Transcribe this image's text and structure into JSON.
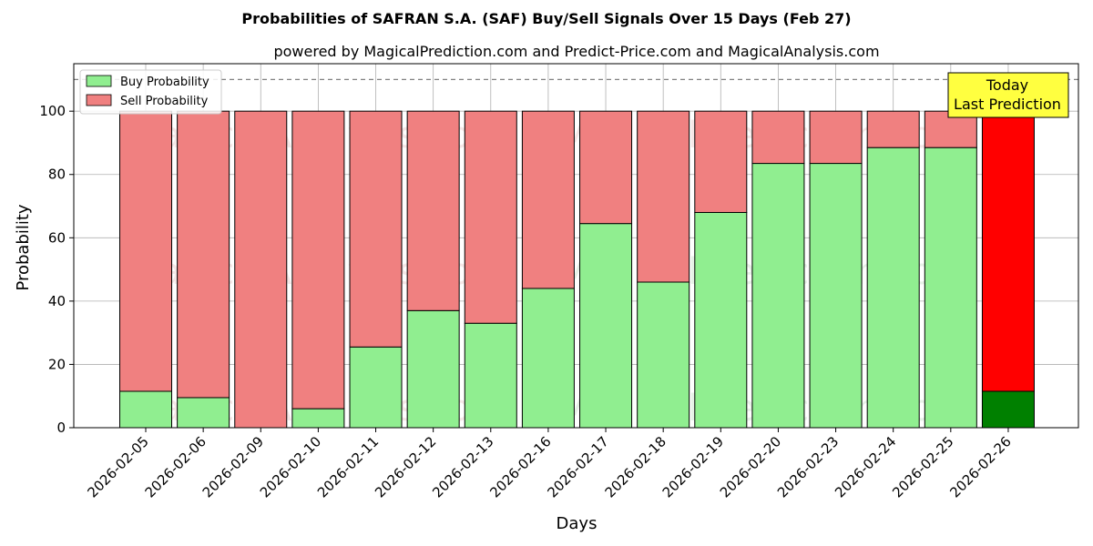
{
  "chart_data": {
    "type": "bar",
    "stacked": true,
    "title": "Probabilities of SAFRAN S.A. (SAF) Buy/Sell Signals Over 15 Days (Feb 27)",
    "subtitle": "powered by MagicalPrediction.com and Predict-Price.com and MagicalAnalysis.com",
    "xlabel": "Days",
    "ylabel": "Probability",
    "ylim": [
      0,
      115
    ],
    "yticks": [
      0,
      20,
      40,
      60,
      80,
      100
    ],
    "grid": true,
    "legend_position": "top-left",
    "reference_line": 110,
    "categories": [
      "2026-02-05",
      "2026-02-06",
      "2026-02-09",
      "2026-02-10",
      "2026-02-11",
      "2026-02-12",
      "2026-02-13",
      "2026-02-16",
      "2026-02-17",
      "2026-02-18",
      "2026-02-19",
      "2026-02-20",
      "2026-02-23",
      "2026-02-24",
      "2026-02-25",
      "2026-02-26"
    ],
    "series": [
      {
        "name": "Buy Probability",
        "color": "#90ee90",
        "highlight_color": "#008000",
        "values": [
          11.5,
          9.5,
          0,
          6,
          25.5,
          37,
          33,
          44,
          64.5,
          46,
          68,
          83.5,
          83.5,
          88.5,
          88.5,
          11.5
        ]
      },
      {
        "name": "Sell Probability",
        "color": "#f08080",
        "highlight_color": "#ff0000",
        "values": [
          88.5,
          90.5,
          100,
          94,
          74.5,
          63,
          67,
          56,
          35.5,
          54,
          32,
          16.5,
          16.5,
          11.5,
          11.5,
          88.5
        ]
      }
    ],
    "highlight_index": 15,
    "annotation": {
      "lines": [
        "Today",
        "Last Prediction"
      ],
      "background": "#ffff40"
    },
    "watermarks": [
      "MagicalAnalysis.com",
      "MagicalPrediction.com"
    ]
  }
}
